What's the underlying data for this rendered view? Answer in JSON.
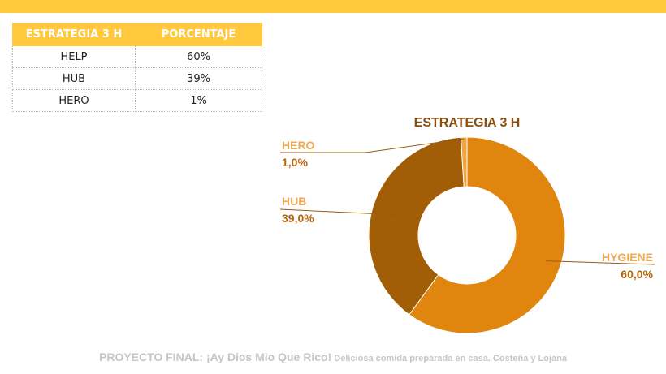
{
  "table": {
    "headers": [
      "ESTRATEGIA 3 H",
      "PORCENTAJE"
    ],
    "rows": [
      {
        "label": "HELP",
        "value": "60%"
      },
      {
        "label": "HUB",
        "value": "39%"
      },
      {
        "label": "HERO",
        "value": "1%"
      }
    ]
  },
  "chart_data": {
    "type": "pie",
    "style": "donut",
    "title": "ESTRATEGIA 3 H",
    "slices": [
      {
        "label": "HYGIENE",
        "value": 60.0,
        "value_label": "60,0%",
        "color": "#e0860f"
      },
      {
        "label": "HUB",
        "value": 39.0,
        "value_label": "39,0%",
        "color": "#a25e06"
      },
      {
        "label": "HERO",
        "value": 1.0,
        "value_label": "1,0%",
        "color": "#f0a63c"
      }
    ],
    "label_color": "#f0a94f",
    "value_color": "#b8660d",
    "title_color": "#8b4f10"
  },
  "footer": {
    "main": "PROYECTO FINAL: ¡Ay Dios Mio Que Rico!",
    "sub": " Deliciosa comida preparada en casa.  Costeña y Lojana"
  },
  "colors": {
    "accent": "#ffc83d"
  }
}
